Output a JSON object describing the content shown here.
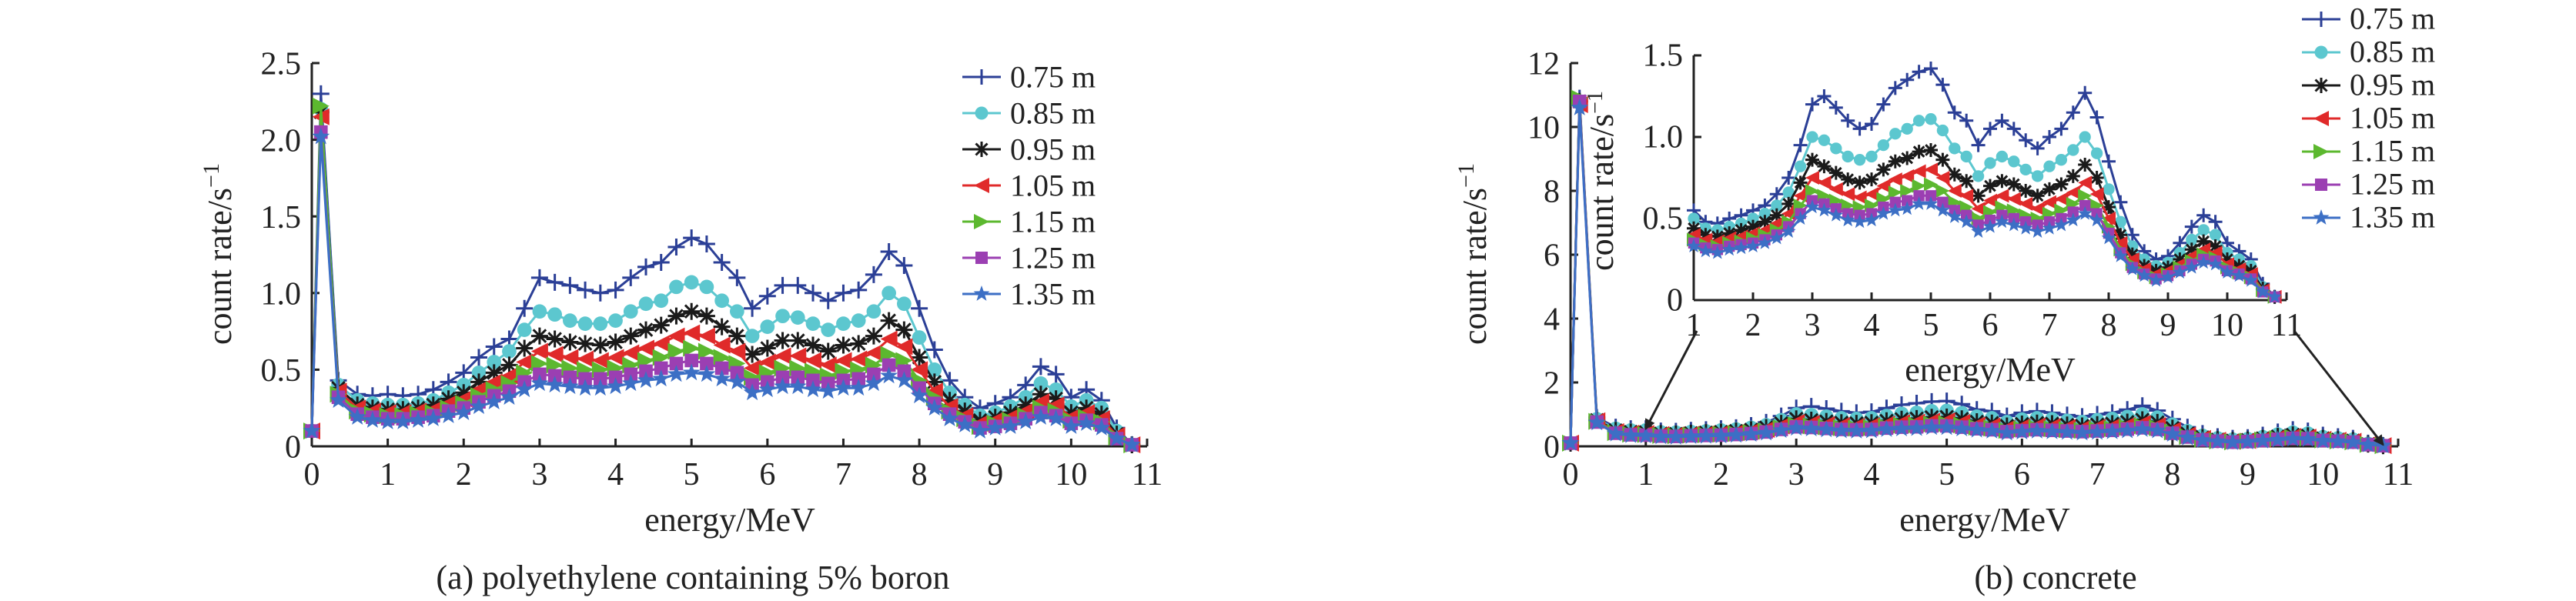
{
  "colors": [
    "#2b3f96",
    "#5cc7cf",
    "#1a1a1a",
    "#e02a2a",
    "#5cb82f",
    "#9b3fb2",
    "#3c6fc5"
  ],
  "markers": [
    "plus",
    "circle",
    "star",
    "triangle-left",
    "triangle-right",
    "square",
    "star5"
  ],
  "chart_data": [
    {
      "type": "line",
      "caption": "(a) polyethylene containing 5% boron",
      "xlabel": "energy/MeV",
      "ylabel": "count rate/s",
      "ylabel_sup": "−1",
      "xlim": [
        0,
        11
      ],
      "ylim": [
        0,
        2.5
      ],
      "xticks": [
        "0",
        "1",
        "2",
        "3",
        "4",
        "5",
        "6",
        "7",
        "8",
        "9",
        "10",
        "11"
      ],
      "yticks": [
        "0",
        "0.5",
        "1.0",
        "1.5",
        "2.0",
        "2.5"
      ],
      "legend_position": "top-right",
      "x": [
        0,
        0.12,
        0.35,
        0.6,
        0.8,
        1.0,
        1.2,
        1.4,
        1.6,
        1.8,
        2.0,
        2.2,
        2.4,
        2.6,
        2.8,
        3.0,
        3.2,
        3.4,
        3.6,
        3.8,
        4.0,
        4.2,
        4.4,
        4.6,
        4.8,
        5.0,
        5.2,
        5.4,
        5.6,
        5.8,
        6.0,
        6.2,
        6.4,
        6.6,
        6.8,
        7.0,
        7.2,
        7.4,
        7.6,
        7.8,
        8.0,
        8.2,
        8.4,
        8.6,
        8.8,
        9.0,
        9.2,
        9.4,
        9.6,
        9.8,
        10.0,
        10.2,
        10.4,
        10.6,
        10.8
      ],
      "series": [
        {
          "name": "0.75 m",
          "values": [
            0.12,
            2.3,
            0.43,
            0.34,
            0.33,
            0.34,
            0.33,
            0.34,
            0.37,
            0.42,
            0.48,
            0.58,
            0.65,
            0.7,
            0.9,
            1.1,
            1.07,
            1.05,
            1.02,
            1.0,
            1.02,
            1.1,
            1.17,
            1.2,
            1.3,
            1.36,
            1.32,
            1.2,
            1.1,
            0.9,
            0.98,
            1.05,
            1.05,
            1.0,
            0.95,
            1.0,
            1.02,
            1.12,
            1.27,
            1.18,
            0.9,
            0.63,
            0.43,
            0.32,
            0.25,
            0.28,
            0.32,
            0.4,
            0.52,
            0.47,
            0.32,
            0.37,
            0.3,
            0.12,
            0.01
          ]
        },
        {
          "name": "0.85 m",
          "values": [
            0.1,
            2.2,
            0.4,
            0.3,
            0.28,
            0.27,
            0.27,
            0.28,
            0.3,
            0.35,
            0.4,
            0.48,
            0.55,
            0.62,
            0.76,
            0.88,
            0.86,
            0.82,
            0.8,
            0.8,
            0.82,
            0.88,
            0.93,
            0.95,
            1.04,
            1.07,
            1.04,
            0.95,
            0.88,
            0.72,
            0.78,
            0.85,
            0.84,
            0.8,
            0.76,
            0.8,
            0.82,
            0.88,
            1.0,
            0.93,
            0.71,
            0.5,
            0.35,
            0.27,
            0.2,
            0.22,
            0.26,
            0.32,
            0.41,
            0.37,
            0.26,
            0.3,
            0.25,
            0.1,
            0.01
          ]
        },
        {
          "name": "0.95 m",
          "values": [
            0.1,
            2.18,
            0.38,
            0.27,
            0.25,
            0.24,
            0.24,
            0.25,
            0.27,
            0.31,
            0.35,
            0.42,
            0.48,
            0.53,
            0.64,
            0.72,
            0.7,
            0.68,
            0.67,
            0.66,
            0.68,
            0.72,
            0.76,
            0.79,
            0.85,
            0.88,
            0.85,
            0.78,
            0.72,
            0.6,
            0.64,
            0.69,
            0.69,
            0.66,
            0.62,
            0.66,
            0.67,
            0.72,
            0.82,
            0.76,
            0.58,
            0.42,
            0.3,
            0.23,
            0.17,
            0.19,
            0.22,
            0.27,
            0.34,
            0.31,
            0.22,
            0.25,
            0.21,
            0.08,
            0.01
          ]
        },
        {
          "name": "1.05 m",
          "values": [
            0.1,
            2.15,
            0.36,
            0.25,
            0.23,
            0.22,
            0.22,
            0.23,
            0.24,
            0.28,
            0.31,
            0.37,
            0.42,
            0.46,
            0.55,
            0.62,
            0.6,
            0.58,
            0.57,
            0.56,
            0.58,
            0.61,
            0.64,
            0.67,
            0.72,
            0.74,
            0.72,
            0.66,
            0.62,
            0.51,
            0.55,
            0.59,
            0.59,
            0.56,
            0.53,
            0.56,
            0.57,
            0.61,
            0.7,
            0.65,
            0.5,
            0.36,
            0.26,
            0.2,
            0.15,
            0.17,
            0.19,
            0.23,
            0.29,
            0.27,
            0.19,
            0.22,
            0.18,
            0.07,
            0.01
          ]
        },
        {
          "name": "1.15 m",
          "values": [
            0.1,
            2.22,
            0.34,
            0.23,
            0.21,
            0.2,
            0.2,
            0.21,
            0.22,
            0.25,
            0.28,
            0.33,
            0.37,
            0.41,
            0.48,
            0.54,
            0.53,
            0.51,
            0.5,
            0.5,
            0.51,
            0.53,
            0.56,
            0.58,
            0.62,
            0.64,
            0.62,
            0.58,
            0.54,
            0.45,
            0.48,
            0.51,
            0.51,
            0.49,
            0.46,
            0.49,
            0.5,
            0.53,
            0.6,
            0.56,
            0.43,
            0.32,
            0.23,
            0.18,
            0.13,
            0.15,
            0.17,
            0.2,
            0.25,
            0.23,
            0.17,
            0.19,
            0.16,
            0.06,
            0.01
          ]
        },
        {
          "name": "1.25 m",
          "values": [
            0.1,
            2.05,
            0.32,
            0.21,
            0.19,
            0.18,
            0.18,
            0.19,
            0.2,
            0.23,
            0.25,
            0.29,
            0.33,
            0.36,
            0.42,
            0.47,
            0.46,
            0.45,
            0.44,
            0.44,
            0.45,
            0.47,
            0.49,
            0.51,
            0.54,
            0.56,
            0.54,
            0.51,
            0.48,
            0.4,
            0.42,
            0.45,
            0.45,
            0.43,
            0.41,
            0.43,
            0.44,
            0.47,
            0.53,
            0.49,
            0.38,
            0.28,
            0.21,
            0.16,
            0.12,
            0.13,
            0.15,
            0.18,
            0.22,
            0.2,
            0.15,
            0.17,
            0.14,
            0.05,
            0.01
          ]
        },
        {
          "name": "1.35 m",
          "values": [
            0.1,
            2.02,
            0.3,
            0.19,
            0.17,
            0.16,
            0.16,
            0.17,
            0.18,
            0.2,
            0.22,
            0.26,
            0.29,
            0.32,
            0.37,
            0.41,
            0.4,
            0.39,
            0.38,
            0.38,
            0.39,
            0.41,
            0.43,
            0.44,
            0.47,
            0.48,
            0.47,
            0.44,
            0.42,
            0.35,
            0.37,
            0.39,
            0.39,
            0.37,
            0.36,
            0.38,
            0.38,
            0.41,
            0.46,
            0.43,
            0.33,
            0.25,
            0.18,
            0.14,
            0.1,
            0.12,
            0.13,
            0.16,
            0.19,
            0.18,
            0.13,
            0.15,
            0.12,
            0.05,
            0.01
          ]
        }
      ]
    },
    {
      "type": "line",
      "caption": "(b) concrete",
      "xlabel": "energy/MeV",
      "ylabel": "count rate/s",
      "ylabel_sup": "−1",
      "xlim": [
        0,
        11
      ],
      "ylim": [
        0,
        12
      ],
      "xticks": [
        "0",
        "1",
        "2",
        "3",
        "4",
        "5",
        "6",
        "7",
        "8",
        "9",
        "10",
        "11"
      ],
      "yticks": [
        "0",
        "2",
        "4",
        "6",
        "8",
        "10",
        "12"
      ],
      "legend_position": "top-right",
      "inset": {
        "xlabel": "energy/MeV",
        "ylabel": "count rate/s",
        "ylabel_sup": "−1",
        "xlim": [
          1,
          11
        ],
        "ylim": [
          0,
          1.5
        ],
        "xticks": [
          "1",
          "2",
          "3",
          "4",
          "5",
          "6",
          "7",
          "8",
          "9",
          "10",
          "11"
        ],
        "yticks": [
          "0",
          "0.5",
          "1.0",
          "1.5"
        ],
        "zoom_from": [
          1,
          10.8
        ]
      },
      "x": [
        0,
        0.12,
        0.35,
        0.6,
        0.8,
        1.0,
        1.2,
        1.4,
        1.6,
        1.8,
        2.0,
        2.2,
        2.4,
        2.6,
        2.8,
        3.0,
        3.2,
        3.4,
        3.6,
        3.8,
        4.0,
        4.2,
        4.4,
        4.6,
        4.8,
        5.0,
        5.2,
        5.4,
        5.6,
        5.8,
        6.0,
        6.2,
        6.4,
        6.6,
        6.8,
        7.0,
        7.2,
        7.4,
        7.6,
        7.8,
        8.0,
        8.2,
        8.4,
        8.6,
        8.8,
        9.0,
        9.2,
        9.4,
        9.6,
        9.8,
        10.0,
        10.2,
        10.4,
        10.6,
        10.8
      ],
      "series": [
        {
          "name": "0.75 m",
          "values": [
            0.1,
            10.9,
            0.9,
            0.6,
            0.55,
            0.55,
            0.48,
            0.47,
            0.5,
            0.52,
            0.55,
            0.58,
            0.65,
            0.75,
            0.95,
            1.2,
            1.25,
            1.18,
            1.1,
            1.05,
            1.08,
            1.2,
            1.3,
            1.35,
            1.4,
            1.42,
            1.32,
            1.15,
            1.1,
            0.95,
            1.05,
            1.1,
            1.05,
            0.98,
            0.93,
            1.0,
            1.05,
            1.15,
            1.27,
            1.12,
            0.85,
            0.6,
            0.4,
            0.3,
            0.25,
            0.27,
            0.35,
            0.45,
            0.52,
            0.48,
            0.35,
            0.3,
            0.25,
            0.1,
            0.02
          ]
        },
        {
          "name": "0.85 m",
          "values": [
            0.1,
            10.8,
            0.85,
            0.55,
            0.5,
            0.5,
            0.44,
            0.43,
            0.45,
            0.47,
            0.5,
            0.53,
            0.58,
            0.66,
            0.82,
            1.0,
            0.98,
            0.93,
            0.88,
            0.86,
            0.88,
            0.95,
            1.02,
            1.05,
            1.1,
            1.11,
            1.04,
            0.93,
            0.88,
            0.76,
            0.84,
            0.88,
            0.85,
            0.8,
            0.76,
            0.82,
            0.86,
            0.92,
            1.0,
            0.9,
            0.68,
            0.48,
            0.33,
            0.25,
            0.21,
            0.23,
            0.29,
            0.37,
            0.43,
            0.4,
            0.29,
            0.25,
            0.21,
            0.08,
            0.02
          ]
        },
        {
          "name": "0.95 m",
          "values": [
            0.1,
            10.8,
            0.82,
            0.5,
            0.45,
            0.44,
            0.4,
            0.39,
            0.41,
            0.43,
            0.45,
            0.48,
            0.52,
            0.59,
            0.72,
            0.86,
            0.82,
            0.78,
            0.74,
            0.72,
            0.74,
            0.8,
            0.85,
            0.87,
            0.91,
            0.92,
            0.86,
            0.77,
            0.73,
            0.64,
            0.7,
            0.73,
            0.71,
            0.67,
            0.64,
            0.68,
            0.71,
            0.76,
            0.83,
            0.75,
            0.57,
            0.4,
            0.28,
            0.21,
            0.18,
            0.2,
            0.25,
            0.31,
            0.36,
            0.33,
            0.25,
            0.21,
            0.18,
            0.07,
            0.02
          ]
        },
        {
          "name": "1.05 m",
          "values": [
            0.1,
            10.7,
            0.8,
            0.46,
            0.41,
            0.4,
            0.37,
            0.36,
            0.38,
            0.39,
            0.41,
            0.43,
            0.47,
            0.53,
            0.64,
            0.75,
            0.72,
            0.68,
            0.65,
            0.63,
            0.65,
            0.7,
            0.74,
            0.76,
            0.79,
            0.8,
            0.75,
            0.67,
            0.64,
            0.56,
            0.61,
            0.64,
            0.62,
            0.59,
            0.56,
            0.6,
            0.62,
            0.66,
            0.72,
            0.65,
            0.5,
            0.35,
            0.25,
            0.19,
            0.16,
            0.18,
            0.22,
            0.27,
            0.31,
            0.29,
            0.22,
            0.19,
            0.16,
            0.06,
            0.02
          ]
        },
        {
          "name": "1.15 m",
          "values": [
            0.1,
            10.9,
            0.78,
            0.43,
            0.38,
            0.37,
            0.34,
            0.33,
            0.35,
            0.36,
            0.38,
            0.4,
            0.43,
            0.48,
            0.58,
            0.67,
            0.64,
            0.61,
            0.58,
            0.57,
            0.58,
            0.62,
            0.66,
            0.67,
            0.7,
            0.71,
            0.67,
            0.6,
            0.57,
            0.5,
            0.54,
            0.57,
            0.55,
            0.52,
            0.5,
            0.53,
            0.55,
            0.59,
            0.64,
            0.58,
            0.45,
            0.31,
            0.22,
            0.17,
            0.14,
            0.16,
            0.2,
            0.24,
            0.28,
            0.26,
            0.2,
            0.17,
            0.14,
            0.06,
            0.02
          ]
        },
        {
          "name": "1.25 m",
          "values": [
            0.1,
            10.8,
            0.76,
            0.41,
            0.36,
            0.35,
            0.32,
            0.31,
            0.33,
            0.34,
            0.35,
            0.37,
            0.4,
            0.45,
            0.53,
            0.61,
            0.59,
            0.56,
            0.53,
            0.52,
            0.53,
            0.57,
            0.6,
            0.61,
            0.64,
            0.64,
            0.6,
            0.55,
            0.52,
            0.46,
            0.49,
            0.52,
            0.5,
            0.48,
            0.46,
            0.48,
            0.5,
            0.54,
            0.58,
            0.53,
            0.41,
            0.29,
            0.2,
            0.16,
            0.13,
            0.15,
            0.18,
            0.22,
            0.25,
            0.24,
            0.18,
            0.16,
            0.13,
            0.05,
            0.02
          ]
        },
        {
          "name": "1.35 m",
          "values": [
            0.1,
            10.6,
            0.74,
            0.39,
            0.34,
            0.33,
            0.3,
            0.29,
            0.31,
            0.32,
            0.33,
            0.35,
            0.38,
            0.42,
            0.5,
            0.57,
            0.55,
            0.52,
            0.49,
            0.48,
            0.49,
            0.53,
            0.55,
            0.56,
            0.59,
            0.59,
            0.55,
            0.51,
            0.48,
            0.42,
            0.45,
            0.48,
            0.46,
            0.44,
            0.42,
            0.44,
            0.46,
            0.49,
            0.53,
            0.49,
            0.38,
            0.27,
            0.19,
            0.15,
            0.12,
            0.14,
            0.17,
            0.2,
            0.23,
            0.22,
            0.17,
            0.15,
            0.12,
            0.05,
            0.02
          ]
        }
      ]
    }
  ]
}
